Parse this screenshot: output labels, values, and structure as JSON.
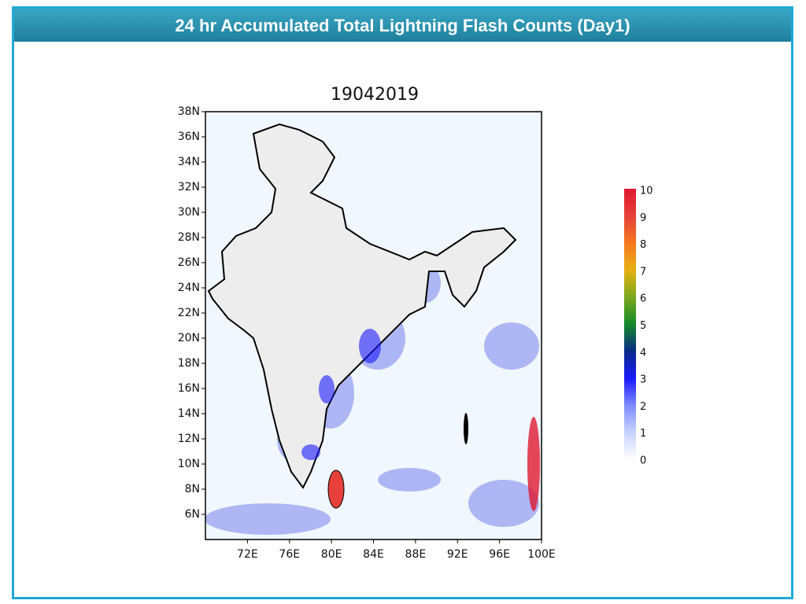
{
  "header": {
    "title": "24 hr Accumulated Total Lightning Flash Counts (Day1)"
  },
  "map": {
    "title": "19042019",
    "latlim": [
      4,
      38
    ],
    "lonlim": [
      68,
      100
    ],
    "lat_ticks": [
      {
        "value": 38,
        "label": "38N"
      },
      {
        "value": 36,
        "label": "36N"
      },
      {
        "value": 34,
        "label": "34N"
      },
      {
        "value": 32,
        "label": "32N"
      },
      {
        "value": 30,
        "label": "30N"
      },
      {
        "value": 28,
        "label": "28N"
      },
      {
        "value": 26,
        "label": "26N"
      },
      {
        "value": 24,
        "label": "24N"
      },
      {
        "value": 22,
        "label": "22N"
      },
      {
        "value": 20,
        "label": "20N"
      },
      {
        "value": 18,
        "label": "18N"
      },
      {
        "value": 16,
        "label": "16N"
      },
      {
        "value": 14,
        "label": "14N"
      },
      {
        "value": 12,
        "label": "12N"
      },
      {
        "value": 10,
        "label": "10N"
      },
      {
        "value": 8,
        "label": "8N"
      },
      {
        "value": 6,
        "label": "6N"
      }
    ],
    "lon_ticks": [
      {
        "value": 72,
        "label": "72E"
      },
      {
        "value": 76,
        "label": "76E"
      },
      {
        "value": 80,
        "label": "80E"
      },
      {
        "value": 84,
        "label": "84E"
      },
      {
        "value": 88,
        "label": "88E"
      },
      {
        "value": 92,
        "label": "92E"
      },
      {
        "value": 96,
        "label": "96E"
      },
      {
        "value": 100,
        "label": "100E"
      }
    ]
  },
  "colorbar": {
    "range": [
      0,
      10
    ],
    "ticks": [
      0,
      1,
      2,
      3,
      4,
      5,
      6,
      7,
      8,
      9,
      10
    ]
  }
}
